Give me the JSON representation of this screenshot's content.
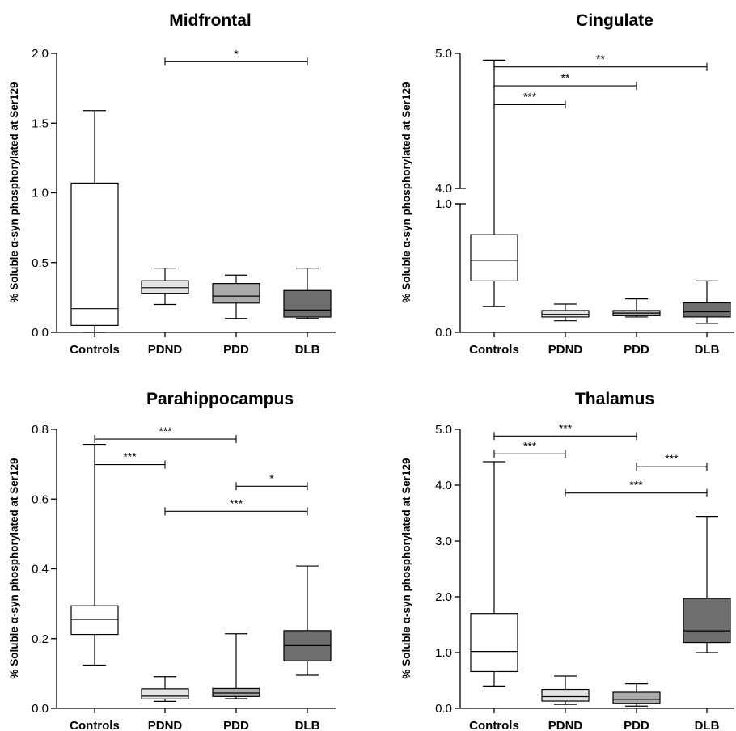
{
  "chart_data": [
    {
      "type": "box",
      "title": "Midfrontal",
      "ylabel": "% Soluble α-syn phosphorylated at Ser129",
      "ylim": [
        0,
        2.0
      ],
      "yticks": [
        "0.0",
        "0.5",
        "1.0",
        "1.5",
        "2.0"
      ],
      "categories": [
        "Controls",
        "PDND",
        "PDD",
        "DLB"
      ],
      "fills": [
        "#ffffff",
        "#e3e3e3",
        "#aaaaaa",
        "#6e6e6e"
      ],
      "boxes": [
        {
          "min": 0.0,
          "q1": 0.05,
          "median": 0.17,
          "q3": 1.07,
          "max": 1.59
        },
        {
          "min": 0.2,
          "q1": 0.28,
          "median": 0.32,
          "q3": 0.37,
          "max": 0.46
        },
        {
          "min": 0.1,
          "q1": 0.21,
          "median": 0.26,
          "q3": 0.35,
          "max": 0.41
        },
        {
          "min": 0.1,
          "q1": 0.11,
          "median": 0.16,
          "q3": 0.3,
          "max": 0.46
        }
      ],
      "significance": [
        {
          "from": "PDND",
          "to": "DLB",
          "y": 1.94,
          "label": "*"
        }
      ]
    },
    {
      "type": "box",
      "title": "Cingulate",
      "ylabel": "% Soluble α-syn phosphorylated at Ser129",
      "ylim": [
        0,
        5.0
      ],
      "axis_break": {
        "lower": [
          0,
          1.0
        ],
        "upper": [
          4.0,
          5.0
        ]
      },
      "yticks": [
        "0.0",
        "1.0",
        "4.0",
        "5.0"
      ],
      "categories": [
        "Controls",
        "PDND",
        "PDD",
        "DLB"
      ],
      "fills": [
        "#ffffff",
        "#e3e3e3",
        "#aaaaaa",
        "#6e6e6e"
      ],
      "boxes": [
        {
          "min": 0.2,
          "q1": 0.4,
          "median": 0.56,
          "q3": 0.76,
          "max": 4.95
        },
        {
          "min": 0.09,
          "q1": 0.12,
          "median": 0.14,
          "q3": 0.17,
          "max": 0.22
        },
        {
          "min": 0.12,
          "q1": 0.13,
          "median": 0.15,
          "q3": 0.17,
          "max": 0.26
        },
        {
          "min": 0.07,
          "q1": 0.12,
          "median": 0.16,
          "q3": 0.23,
          "max": 0.4
        }
      ],
      "significance": [
        {
          "from": "Controls",
          "to": "PDND",
          "y": 4.62,
          "label": "***"
        },
        {
          "from": "Controls",
          "to": "PDD",
          "y": 4.76,
          "label": "**"
        },
        {
          "from": "Controls",
          "to": "DLB",
          "y": 4.9,
          "label": "**"
        }
      ]
    },
    {
      "type": "box",
      "title": "Parahippocampus",
      "ylabel": "% Soluble α-syn phosphorylated at Ser129",
      "ylim": [
        0,
        0.8
      ],
      "yticks": [
        "0.0",
        "0.2",
        "0.4",
        "0.6",
        "0.8"
      ],
      "categories": [
        "Controls",
        "PDND",
        "PDD",
        "DLB"
      ],
      "fills": [
        "#ffffff",
        "#e3e3e3",
        "#aaaaaa",
        "#6e6e6e"
      ],
      "boxes": [
        {
          "min": 0.124,
          "q1": 0.212,
          "median": 0.255,
          "q3": 0.294,
          "max": 0.757
        },
        {
          "min": 0.02,
          "q1": 0.027,
          "median": 0.035,
          "q3": 0.056,
          "max": 0.091
        },
        {
          "min": 0.028,
          "q1": 0.034,
          "median": 0.044,
          "q3": 0.057,
          "max": 0.214
        },
        {
          "min": 0.095,
          "q1": 0.136,
          "median": 0.18,
          "q3": 0.223,
          "max": 0.408
        }
      ],
      "significance": [
        {
          "from": "Controls",
          "to": "PDD",
          "y": 0.772,
          "label": "***"
        },
        {
          "from": "Controls",
          "to": "PDND",
          "y": 0.699,
          "label": "***"
        },
        {
          "from": "PDD",
          "to": "DLB",
          "y": 0.637,
          "label": "*"
        },
        {
          "from": "PDND",
          "to": "DLB",
          "y": 0.565,
          "label": "***"
        }
      ]
    },
    {
      "type": "box",
      "title": "Thalamus",
      "ylabel": "% Soluble α-syn phosphorylated at Ser129",
      "ylim": [
        0,
        5.0
      ],
      "yticks": [
        "0.0",
        "1.0",
        "2.0",
        "3.0",
        "4.0",
        "5.0"
      ],
      "categories": [
        "Controls",
        "PDND",
        "PDD",
        "DLB"
      ],
      "fills": [
        "#ffffff",
        "#e3e3e3",
        "#aaaaaa",
        "#6e6e6e"
      ],
      "boxes": [
        {
          "min": 0.4,
          "q1": 0.66,
          "median": 1.02,
          "q3": 1.7,
          "max": 4.42
        },
        {
          "min": 0.07,
          "q1": 0.13,
          "median": 0.21,
          "q3": 0.34,
          "max": 0.58
        },
        {
          "min": 0.04,
          "q1": 0.09,
          "median": 0.16,
          "q3": 0.29,
          "max": 0.44
        },
        {
          "min": 1.0,
          "q1": 1.18,
          "median": 1.39,
          "q3": 1.97,
          "max": 3.44
        }
      ],
      "significance": [
        {
          "from": "Controls",
          "to": "PDD",
          "y": 4.88,
          "label": "***"
        },
        {
          "from": "Controls",
          "to": "PDND",
          "y": 4.56,
          "label": "***"
        },
        {
          "from": "PDD",
          "to": "DLB",
          "y": 4.33,
          "label": "***"
        },
        {
          "from": "PDND",
          "to": "DLB",
          "y": 3.86,
          "label": "***"
        }
      ]
    }
  ]
}
